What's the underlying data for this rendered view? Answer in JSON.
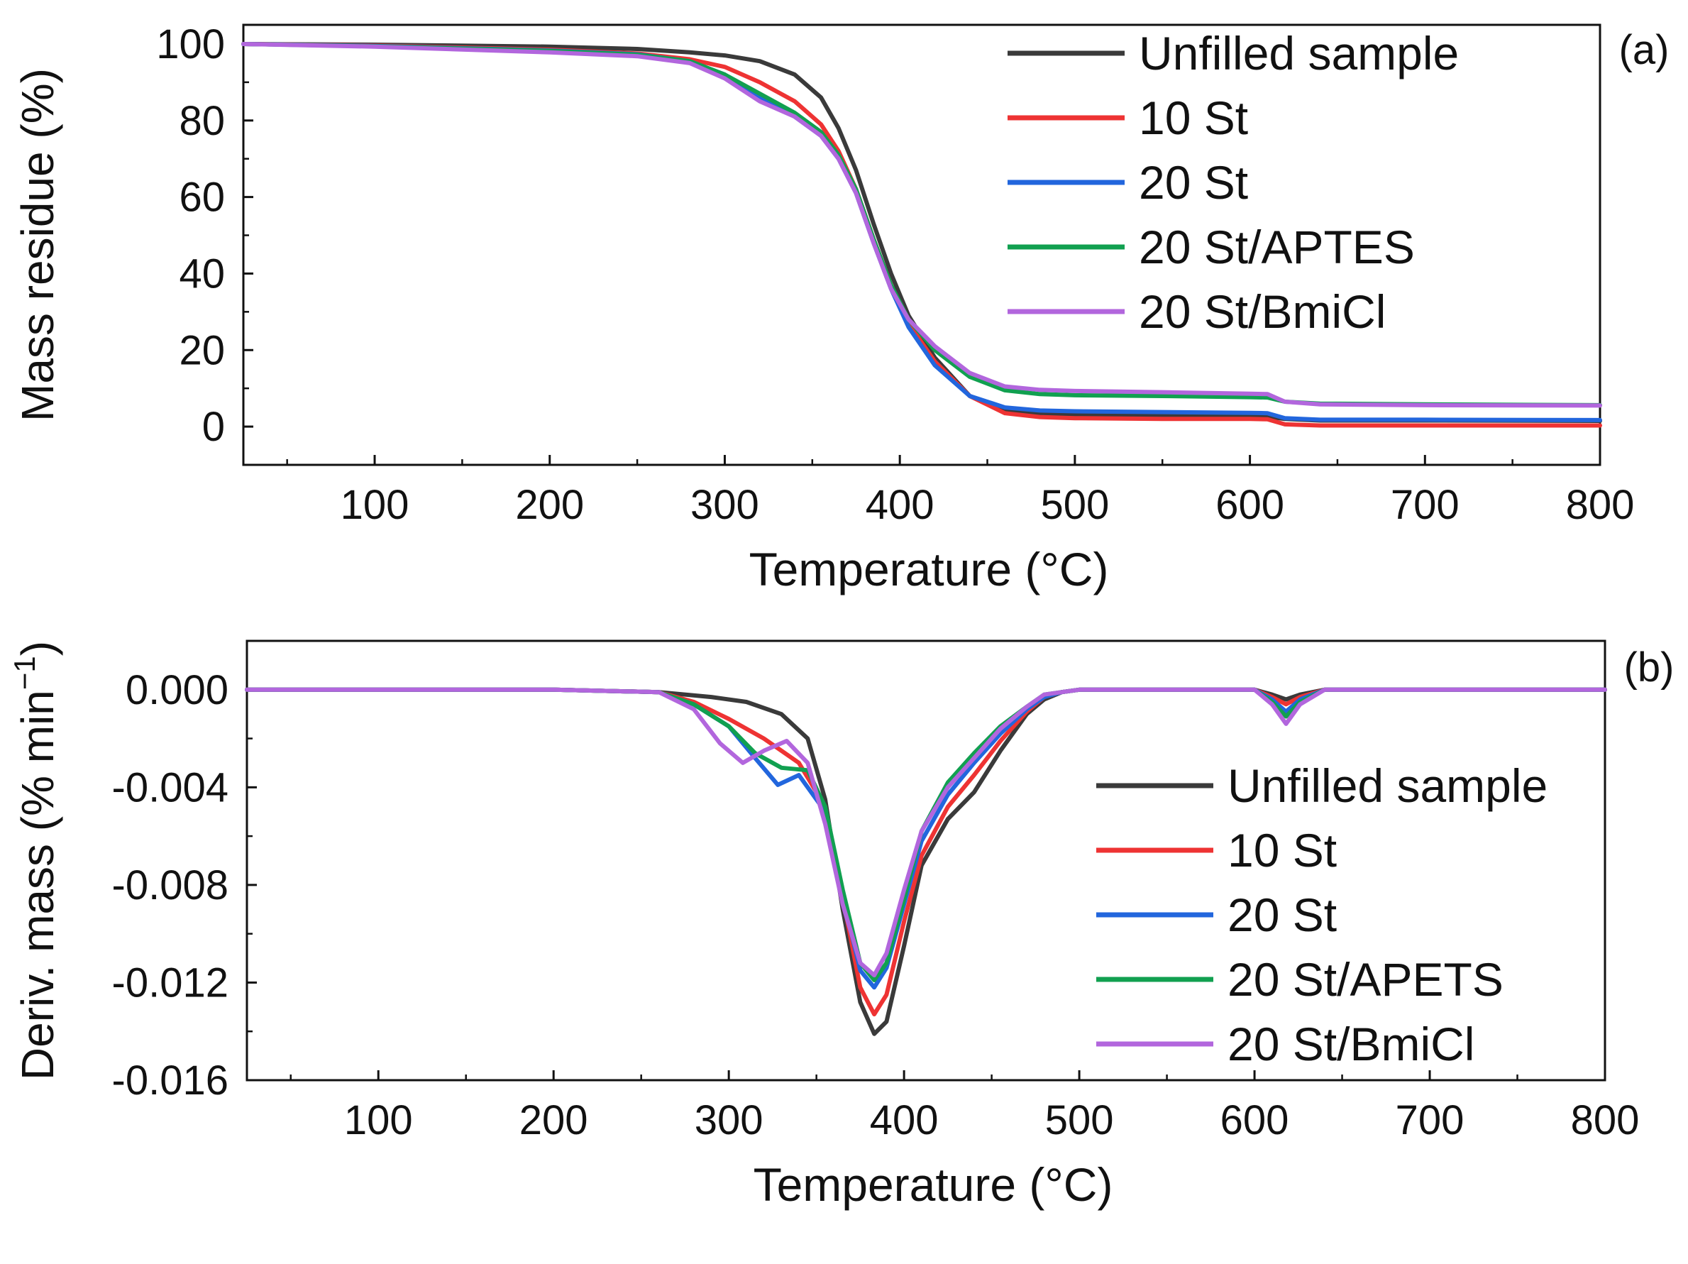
{
  "chart_data": [
    {
      "type": "line",
      "panel_label": "(a)",
      "xlabel": "Temperature (°C)",
      "ylabel": "Mass residue (%)",
      "xlim": [
        25,
        800
      ],
      "ylim": [
        -10,
        105
      ],
      "xticks": [
        100,
        200,
        300,
        400,
        500,
        600,
        700,
        800
      ],
      "yticks": [
        0,
        20,
        40,
        60,
        80,
        100
      ],
      "ytick_labels": [
        "0",
        "20",
        "40",
        "60",
        "80",
        "100"
      ],
      "legend": "top-right",
      "series": [
        {
          "name": "Unfilled sample",
          "color": "#3a3a3a",
          "x": [
            25,
            100,
            200,
            250,
            280,
            300,
            320,
            340,
            355,
            365,
            375,
            385,
            395,
            405,
            420,
            440,
            460,
            480,
            500,
            550,
            600,
            610,
            620,
            640,
            700,
            800
          ],
          "y": [
            100,
            99.8,
            99.3,
            98.7,
            97.8,
            97,
            95.5,
            92,
            86,
            78,
            67,
            53,
            40,
            29,
            18,
            8,
            4,
            3.2,
            3,
            2.8,
            2.7,
            2.6,
            2,
            1.6,
            1.6,
            1.5
          ]
        },
        {
          "name": "10 St",
          "color": "#ee3333",
          "x": [
            25,
            100,
            200,
            250,
            280,
            300,
            320,
            340,
            355,
            365,
            375,
            385,
            395,
            405,
            420,
            440,
            460,
            480,
            500,
            550,
            600,
            610,
            620,
            640,
            700,
            800
          ],
          "y": [
            100,
            99.6,
            98.5,
            97.5,
            96,
            94,
            90,
            85,
            79,
            72,
            62,
            49,
            37,
            27,
            17,
            8,
            3.5,
            2.5,
            2.2,
            2,
            2,
            1.9,
            0.6,
            0.3,
            0.3,
            0.3
          ]
        },
        {
          "name": "20 St",
          "color": "#2266dd",
          "x": [
            25,
            100,
            200,
            250,
            280,
            300,
            320,
            340,
            355,
            365,
            375,
            385,
            395,
            405,
            420,
            440,
            460,
            480,
            500,
            550,
            600,
            610,
            620,
            640,
            700,
            800
          ],
          "y": [
            100,
            99.5,
            98.3,
            97.3,
            95.5,
            92,
            86,
            81,
            76,
            70,
            61,
            48,
            36,
            26,
            16,
            8,
            5,
            4.2,
            4,
            3.8,
            3.6,
            3.5,
            2.2,
            1.8,
            1.8,
            1.7
          ]
        },
        {
          "name": "20 St/APTES",
          "color": "#11a050",
          "x": [
            25,
            100,
            200,
            250,
            280,
            300,
            320,
            340,
            355,
            365,
            375,
            385,
            395,
            405,
            420,
            440,
            460,
            480,
            500,
            550,
            600,
            610,
            620,
            640,
            700,
            800
          ],
          "y": [
            100,
            99.4,
            98.2,
            97.2,
            95.5,
            92,
            87,
            82,
            77,
            71,
            62,
            49,
            37,
            28,
            20,
            13,
            9.5,
            8.5,
            8.2,
            8,
            7.7,
            7.6,
            6.5,
            6,
            5.8,
            5.6
          ]
        },
        {
          "name": "20 St/BmiCl",
          "color": "#b266dd",
          "x": [
            25,
            100,
            200,
            250,
            280,
            300,
            320,
            340,
            355,
            365,
            375,
            385,
            395,
            405,
            420,
            440,
            460,
            480,
            500,
            550,
            600,
            610,
            620,
            640,
            700,
            800
          ],
          "y": [
            100,
            99.3,
            97.8,
            96.8,
            95,
            91,
            85,
            81,
            76,
            70,
            61,
            48,
            36,
            28,
            21,
            14,
            10.5,
            9.6,
            9.3,
            9,
            8.6,
            8.5,
            6.5,
            5.8,
            5.6,
            5.5
          ]
        }
      ]
    },
    {
      "type": "line",
      "panel_label": "(b)",
      "xlabel": "Temperature (°C)",
      "ylabel_main": "Deriv. mass (% min",
      "ylabel_sup": "−1",
      "ylabel_close": ")",
      "xlim": [
        25,
        800
      ],
      "ylim": [
        -0.016,
        0.002
      ],
      "xticks": [
        100,
        200,
        300,
        400,
        500,
        600,
        700,
        800
      ],
      "yticks": [
        0,
        -0.004,
        -0.008,
        -0.012,
        -0.016
      ],
      "ytick_labels": [
        "0.000",
        "-0.004",
        "-0.008",
        "-0.012",
        "-0.016"
      ],
      "legend": "bottom-right",
      "series": [
        {
          "name": "Unfilled sample",
          "color": "#3a3a3a",
          "x": [
            25,
            200,
            260,
            290,
            310,
            330,
            345,
            355,
            365,
            375,
            383,
            390,
            400,
            410,
            425,
            440,
            455,
            470,
            480,
            490,
            500,
            600,
            610,
            618,
            626,
            640,
            700,
            800
          ],
          "y": [
            0,
            0,
            -0.0001,
            -0.0003,
            -0.0005,
            -0.001,
            -0.002,
            -0.0045,
            -0.009,
            -0.0128,
            -0.0141,
            -0.0136,
            -0.0105,
            -0.0072,
            -0.0053,
            -0.0042,
            -0.0025,
            -0.001,
            -0.0004,
            -0.0001,
            0,
            0,
            -0.0002,
            -0.0004,
            -0.0002,
            0,
            0,
            0
          ]
        },
        {
          "name": "10 St",
          "color": "#ee3333",
          "x": [
            25,
            200,
            260,
            280,
            300,
            320,
            340,
            355,
            365,
            375,
            383,
            390,
            400,
            410,
            425,
            440,
            455,
            470,
            480,
            490,
            500,
            600,
            610,
            618,
            626,
            640,
            700,
            800
          ],
          "y": [
            0,
            0,
            -0.0001,
            -0.0005,
            -0.0012,
            -0.002,
            -0.003,
            -0.0048,
            -0.0085,
            -0.0122,
            -0.0133,
            -0.0125,
            -0.0095,
            -0.0068,
            -0.0048,
            -0.0035,
            -0.0021,
            -0.0009,
            -0.0003,
            -0.0001,
            0,
            0,
            -0.0003,
            -0.0006,
            -0.0003,
            0,
            0,
            0
          ]
        },
        {
          "name": "20 St",
          "color": "#2266dd",
          "x": [
            25,
            200,
            260,
            280,
            300,
            315,
            328,
            340,
            355,
            365,
            375,
            383,
            390,
            400,
            410,
            425,
            440,
            455,
            470,
            480,
            490,
            500,
            600,
            610,
            618,
            626,
            640,
            700,
            800
          ],
          "y": [
            0,
            0,
            -0.0001,
            -0.0006,
            -0.0015,
            -0.0028,
            -0.0039,
            -0.0035,
            -0.005,
            -0.0085,
            -0.0115,
            -0.0122,
            -0.0114,
            -0.0088,
            -0.0062,
            -0.0043,
            -0.003,
            -0.0018,
            -0.0008,
            -0.0003,
            -0.0001,
            0,
            0,
            -0.0004,
            -0.0009,
            -0.0004,
            0,
            0,
            0
          ]
        },
        {
          "name": "20 St/APETS",
          "color": "#11a050",
          "x": [
            25,
            200,
            260,
            280,
            300,
            315,
            330,
            345,
            355,
            365,
            375,
            383,
            390,
            400,
            410,
            425,
            440,
            455,
            470,
            480,
            490,
            500,
            600,
            610,
            618,
            626,
            640,
            700,
            800
          ],
          "y": [
            0,
            0,
            -0.0001,
            -0.0006,
            -0.0015,
            -0.0026,
            -0.0032,
            -0.0033,
            -0.0048,
            -0.0082,
            -0.0112,
            -0.0119,
            -0.0112,
            -0.0086,
            -0.0058,
            -0.0038,
            -0.0026,
            -0.0015,
            -0.0007,
            -0.0002,
            -0.0001,
            0,
            0,
            -0.0005,
            -0.0011,
            -0.0005,
            0,
            0,
            0
          ]
        },
        {
          "name": "20 St/BmiCl",
          "color": "#b266dd",
          "x": [
            25,
            200,
            260,
            280,
            295,
            308,
            320,
            333,
            345,
            355,
            365,
            375,
            383,
            390,
            400,
            410,
            425,
            440,
            455,
            470,
            480,
            490,
            500,
            600,
            610,
            618,
            626,
            640,
            700,
            800
          ],
          "y": [
            0,
            0,
            -0.0001,
            -0.0008,
            -0.0022,
            -0.003,
            -0.0025,
            -0.0021,
            -0.003,
            -0.0055,
            -0.0088,
            -0.0112,
            -0.0117,
            -0.0108,
            -0.0082,
            -0.0058,
            -0.004,
            -0.0028,
            -0.0016,
            -0.0007,
            -0.0002,
            -0.0001,
            0,
            0,
            -0.0006,
            -0.0014,
            -0.0006,
            0,
            0,
            0
          ]
        }
      ]
    }
  ]
}
